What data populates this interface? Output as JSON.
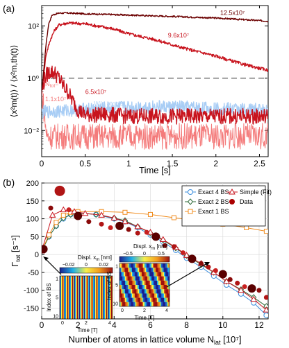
{
  "figure": {
    "panel_a_label": "(a)",
    "panel_b_label": "(b)",
    "inset_left_title": "Displ. x",
    "inset_left_unit": " [nm]",
    "inset_right_title": "Displ. x",
    "inset_right_unit": " [nm]",
    "inset_left_xlabel": "Time [T]",
    "inset_left_ylabel": "Index of BS",
    "inset_right_xlabel": "Time [T]",
    "inset_right_ylabel": "Index of BS"
  },
  "colors": {
    "dark_red": "#6b0000",
    "red": "#c8141e",
    "light_red": "#f47b7b",
    "light_blue": "#a8cdf5",
    "gray_dashed": "#a0a0a0",
    "blue": "#3b8ede",
    "green": "#2f6b3a",
    "orange": "#f08c1e",
    "data_dark": "#5a0000"
  },
  "chart_data": [
    {
      "type": "line",
      "panel": "a",
      "xlabel": "Time [s]",
      "ylabel": "⟨x²m(t)⟩ / ⟨x²m,th(t)⟩",
      "yscale": "log",
      "xlim": [
        0,
        2.6
      ],
      "ylim": [
        0.001,
        600
      ],
      "xticks": [
        0,
        0.5,
        1,
        1.5,
        2,
        2.5
      ],
      "xtick_labels": [
        "0",
        "0.5",
        "1",
        "1.5",
        "2",
        "2.5"
      ],
      "yticks": [
        0.01,
        1,
        100
      ],
      "ytick_labels": [
        "10⁻²",
        "10⁰",
        "10²"
      ],
      "reference_line": {
        "y": 1,
        "style": "dashed"
      },
      "series": [
        {
          "name": "12.5x10⁷",
          "color": "dark_red",
          "x": [
            0,
            0.02,
            0.05,
            0.08,
            0.12,
            0.2,
            0.3,
            0.5,
            1.0,
            1.5,
            2.0,
            2.5,
            2.6
          ],
          "y": [
            0.3,
            1.5,
            20,
            120,
            260,
            310,
            310,
            290,
            260,
            230,
            200,
            160,
            150
          ]
        },
        {
          "name": "9.6x10⁷",
          "color": "red",
          "x": [
            0,
            0.02,
            0.05,
            0.1,
            0.15,
            0.2,
            0.3,
            0.5,
            0.8,
            1.0,
            1.3,
            1.6,
            2.0,
            2.3,
            2.6
          ],
          "y": [
            0.3,
            1,
            8,
            30,
            70,
            110,
            130,
            120,
            80,
            50,
            30,
            15,
            7,
            3.5,
            2
          ]
        },
        {
          "name": "6.5x10⁷",
          "color": "red",
          "x": [
            0,
            0.02,
            0.05,
            0.1,
            0.15,
            0.2,
            0.25,
            0.3,
            0.35,
            0.42,
            0.5,
            0.6,
            0.8,
            1.0,
            1.5,
            2.0,
            2.6
          ],
          "y": [
            0.3,
            0.6,
            1.3,
            1.8,
            1.6,
            1.0,
            0.5,
            0.3,
            0.15,
            0.06,
            0.04,
            0.04,
            0.04,
            0.035,
            0.035,
            0.035,
            0.035
          ]
        },
        {
          "name": "1.1x10⁷",
          "color": "light_red",
          "x": [
            0,
            0.02,
            0.04,
            0.06,
            0.1,
            0.2,
            0.5,
            1.0,
            1.5,
            2.0,
            2.6
          ],
          "y": [
            0.3,
            0.1,
            0.02,
            0.006,
            0.006,
            0.006,
            0.006,
            0.006,
            0.006,
            0.006,
            0.006
          ]
        },
        {
          "name": "W/o atoms",
          "color": "light_blue",
          "x": [
            0,
            0.5,
            1.0,
            1.5,
            2.0,
            2.6
          ],
          "y": [
            0.05,
            0.065,
            0.08,
            0.08,
            0.07,
            0.06
          ]
        }
      ],
      "annotations": [
        {
          "text": "12.5x10⁷",
          "x": 2.05,
          "y": 260
        },
        {
          "text": "9.6x10⁷",
          "x": 1.45,
          "y": 36
        },
        {
          "text": "6.5x10⁷",
          "x": 0.5,
          "y": 0.25
        },
        {
          "text": "N",
          "sub": "tot",
          "eq": "=",
          "x": 0.04,
          "y": 0.5
        },
        {
          "text": "1.1x10⁷",
          "x": 0.04,
          "y": 0.13
        },
        {
          "text": "W/o atoms",
          "x": 0.6,
          "y": 0.09
        }
      ]
    },
    {
      "type": "line",
      "panel": "b",
      "xlabel": "Number of atoms in lattice volume N",
      "xlabel_sub": "lat",
      "xlabel_unit": " [10⁷]",
      "ylabel": "Γ",
      "ylabel_sub": "tot",
      "ylabel_unit": " [s⁻¹]",
      "xlim": [
        0,
        12.5
      ],
      "ylim": [
        -180,
        200
      ],
      "xticks": [
        0,
        2,
        4,
        6,
        8,
        10,
        12
      ],
      "yticks": [
        -150,
        -100,
        -50,
        0,
        50,
        100,
        150,
        200
      ],
      "grid": true,
      "legend": [
        "Exact 4 BS",
        "Exact 2 BS",
        "Exact 1 BS",
        "Simple (Fit)",
        "Data"
      ],
      "legend_position": "top-right",
      "series": [
        {
          "name": "Exact 4 BS",
          "color": "blue",
          "marker": "circle",
          "x": [
            0,
            0.4,
            0.8,
            1.2,
            1.6,
            2.0,
            3.0,
            4.0,
            4.6,
            5.3,
            6.0,
            6.7,
            7.4,
            8.0,
            8.8,
            9.5,
            10.2,
            11.0,
            11.7,
            12.4
          ],
          "y": [
            10,
            50,
            80,
            100,
            112,
            117,
            112,
            100,
            92,
            75,
            55,
            35,
            12,
            -10,
            -35,
            -60,
            -85,
            -110,
            -135,
            -170
          ]
        },
        {
          "name": "Exact 2 BS",
          "color": "green",
          "marker": "diamond",
          "x": [
            0,
            0.4,
            0.8,
            1.2,
            1.6,
            2.0,
            3.0,
            4.0,
            4.6,
            5.3,
            6.0,
            6.7,
            7.4,
            8.0,
            8.8,
            9.5,
            10.2,
            11.0,
            11.7,
            12.4
          ],
          "y": [
            10,
            50,
            80,
            102,
            112,
            116,
            112,
            102,
            95,
            78,
            60,
            40,
            18,
            -3,
            -28,
            -50,
            -75,
            -98,
            -120,
            -145
          ]
        },
        {
          "name": "Exact 1 BS",
          "color": "orange",
          "marker": "square",
          "x": [
            0,
            0.4,
            0.8,
            1.2,
            1.6,
            2.0,
            3.3,
            4.6,
            6.0,
            7.3,
            8.7,
            10.0,
            11.3,
            12.4
          ],
          "y": [
            10,
            55,
            90,
            110,
            118,
            120,
            120,
            118,
            112,
            103,
            94,
            85,
            75,
            65
          ]
        },
        {
          "name": "Simple (Fit)",
          "color": "red",
          "marker": "triangle",
          "x": [
            0,
            0.6,
            1.2,
            1.8,
            2.4,
            3.3,
            4.0,
            4.6,
            5.3,
            6.0,
            6.7,
            7.4,
            8.0,
            8.8,
            9.5,
            10.2,
            11.0,
            11.7,
            12.4
          ],
          "y": [
            10,
            110,
            125,
            120,
            115,
            110,
            102,
            92,
            78,
            62,
            42,
            20,
            -2,
            -25,
            -50,
            -75,
            -100,
            -125,
            -155
          ]
        },
        {
          "name": "Data",
          "color": "data_dark",
          "marker": "dot",
          "x": [
            0.1,
            0.5,
            1.0,
            1.5,
            2.0,
            2.6,
            3.3,
            3.8,
            4.3,
            4.8,
            5.3,
            5.8,
            6.3,
            6.8,
            7.3,
            7.8,
            8.3,
            8.8,
            9.2,
            9.6,
            10.0,
            10.4,
            10.8,
            11.2,
            11.6,
            12.0,
            12.4
          ],
          "y": [
            15,
            130,
            178,
            125,
            108,
            92,
            85,
            75,
            80,
            70,
            60,
            62,
            50,
            25,
            22,
            5,
            -12,
            -25,
            -35,
            -45,
            -55,
            -70,
            -80,
            -90,
            -95,
            -100,
            -120
          ]
        }
      ],
      "inset_left": {
        "xticks": [
          "0",
          "2",
          "4"
        ],
        "yticks": [
          "1",
          "5",
          "10"
        ],
        "cbar_ticks": [
          "−0.02",
          "0",
          "0.02"
        ]
      },
      "inset_right": {
        "xticks": [
          "0",
          "2",
          "4"
        ],
        "yticks": [
          "1",
          "5",
          "10"
        ],
        "cbar_ticks": [
          "−0.5",
          "0",
          "0.5"
        ]
      }
    }
  ]
}
